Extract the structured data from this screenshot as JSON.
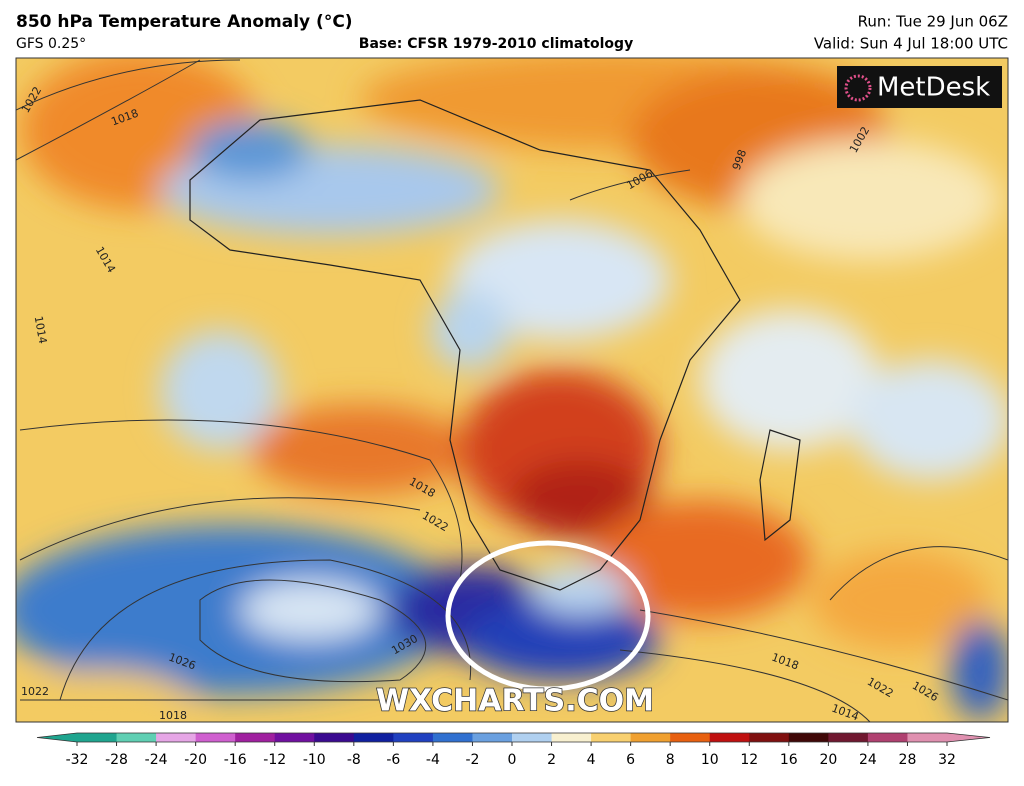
{
  "header": {
    "title": "850 hPa Temperature Anomaly (°C)",
    "model": "GFS 0.25°",
    "base": "Base: CFSR 1979-2010 climatology",
    "run": "Run: Tue 29 Jun 06Z",
    "valid": "Valid: Sun 4 Jul 18:00 UTC"
  },
  "map": {
    "logo": "MetDesk",
    "watermark": "WXCHARTS.COM",
    "isobar_labels": [
      1022,
      1018,
      1014,
      1014,
      1006,
      998,
      1002,
      1018,
      1022,
      1030,
      1026,
      1022,
      1018,
      1018,
      1022,
      1026,
      1014
    ]
  },
  "colorbar": {
    "ticks": [
      -32,
      -28,
      -24,
      -20,
      -16,
      -12,
      -10,
      -8,
      -6,
      -4,
      -2,
      0,
      2,
      4,
      6,
      8,
      10,
      12,
      16,
      20,
      24,
      28,
      32
    ],
    "colors": [
      "#1fa58f",
      "#5fcfb3",
      "#e6a6e6",
      "#cf5fcf",
      "#a020a0",
      "#7010a0",
      "#3a0a90",
      "#1020a0",
      "#2040c0",
      "#3070d0",
      "#6aa0e0",
      "#b0d0f0",
      "#f8f0d0",
      "#f8d070",
      "#f0a030",
      "#e86010",
      "#c01010",
      "#801010",
      "#400808",
      "#701830",
      "#b04070",
      "#e090b0"
    ]
  }
}
